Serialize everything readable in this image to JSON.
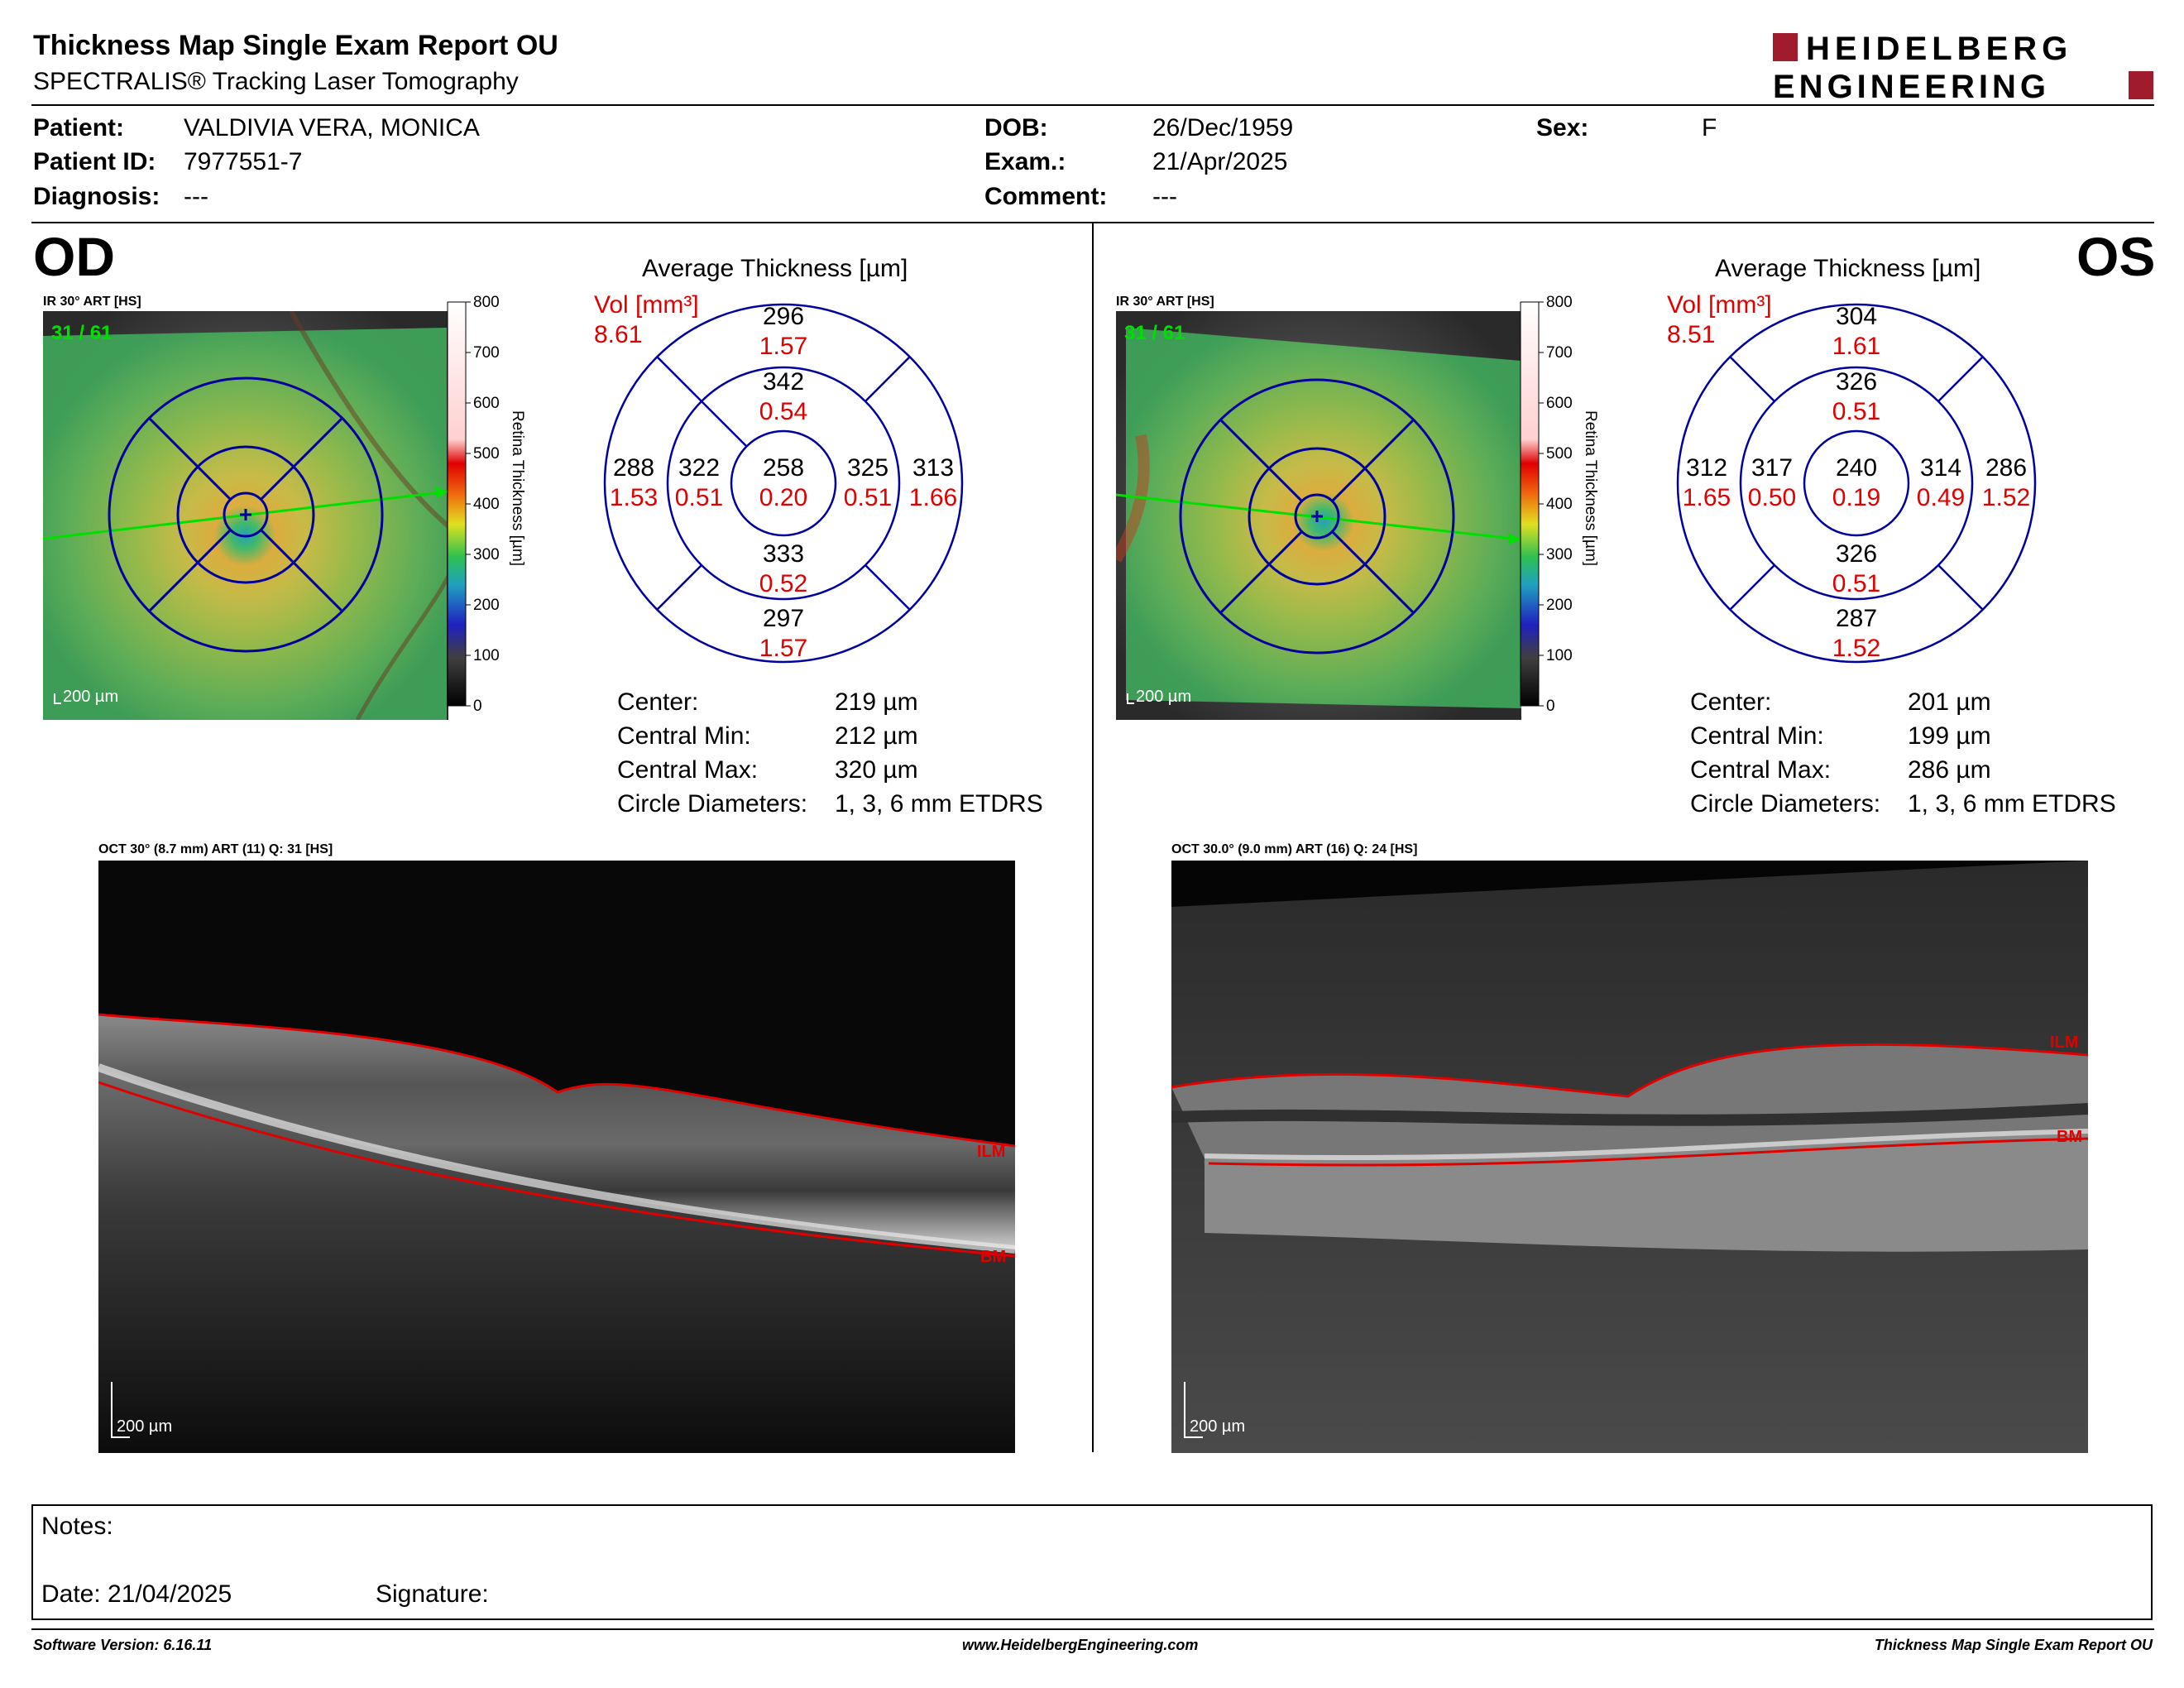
{
  "header": {
    "title": "Thickness Map Single Exam Report OU",
    "subtitle": "SPECTRALIS® Tracking Laser Tomography",
    "logo_line1": "HEIDELBERG",
    "logo_line2": "ENGINEERING"
  },
  "patient": {
    "patient_label": "Patient:",
    "patient_value": "VALDIVIA VERA, MONICA",
    "id_label": "Patient ID:",
    "id_value": "7977551-7",
    "diagnosis_label": "Diagnosis:",
    "diagnosis_value": "---",
    "dob_label": "DOB:",
    "dob_value": "26/Dec/1959",
    "exam_label": "Exam.:",
    "exam_value": "21/Apr/2025",
    "comment_label": "Comment:",
    "comment_value": "---",
    "sex_label": "Sex:",
    "sex_value": "F"
  },
  "od": {
    "eye": "OD",
    "ir_label": "IR 30° ART [HS]",
    "frames": "31 / 61",
    "scale": "200 µm",
    "colorbar_ticks": [
      "800",
      "700",
      "600",
      "500",
      "400",
      "300",
      "200",
      "100",
      "0"
    ],
    "colorbar_label": "Retina Thickness [µm]",
    "avg_title": "Average Thickness [µm]",
    "vol_label": "Vol [mm³]",
    "vol_value": "8.61",
    "sectors": {
      "outer_sup": [
        "296",
        "1.57"
      ],
      "inner_sup": [
        "342",
        "0.54"
      ],
      "outer_temp": [
        "288",
        "1.53"
      ],
      "inner_temp": [
        "322",
        "0.51"
      ],
      "center": [
        "258",
        "0.20"
      ],
      "inner_nas": [
        "325",
        "0.51"
      ],
      "outer_nas": [
        "313",
        "1.66"
      ],
      "inner_inf": [
        "333",
        "0.52"
      ],
      "outer_inf": [
        "297",
        "1.57"
      ]
    },
    "stats": {
      "center_label": "Center:",
      "center_value": "219 µm",
      "min_label": "Central Min:",
      "min_value": "212 µm",
      "max_label": "Central Max:",
      "max_value": "320 µm",
      "circ_label": "Circle Diameters:",
      "circ_value": "1, 3, 6 mm ETDRS"
    },
    "oct_label": "OCT 30° (8.7 mm) ART (11) Q: 31 [HS]",
    "oct_scale": "200 µm",
    "ilm": "ILM",
    "bm": "BM"
  },
  "os": {
    "eye": "OS",
    "ir_label": "IR 30° ART [HS]",
    "frames": "31 / 61",
    "scale": "200 µm",
    "colorbar_ticks": [
      "800",
      "700",
      "600",
      "500",
      "400",
      "300",
      "200",
      "100",
      "0"
    ],
    "colorbar_label": "Retina Thickness [µm]",
    "avg_title": "Average Thickness [µm]",
    "vol_label": "Vol [mm³]",
    "vol_value": "8.51",
    "sectors": {
      "outer_sup": [
        "304",
        "1.61"
      ],
      "inner_sup": [
        "326",
        "0.51"
      ],
      "outer_temp": [
        "312",
        "1.65"
      ],
      "inner_temp": [
        "317",
        "0.50"
      ],
      "center": [
        "240",
        "0.19"
      ],
      "inner_nas": [
        "314",
        "0.49"
      ],
      "outer_nas": [
        "286",
        "1.52"
      ],
      "inner_inf": [
        "326",
        "0.51"
      ],
      "outer_inf": [
        "287",
        "1.52"
      ]
    },
    "stats": {
      "center_label": "Center:",
      "center_value": "201 µm",
      "min_label": "Central Min:",
      "min_value": "199 µm",
      "max_label": "Central Max:",
      "max_value": "286 µm",
      "circ_label": "Circle Diameters:",
      "circ_value": "1, 3, 6 mm ETDRS"
    },
    "oct_label": "OCT 30.0° (9.0 mm) ART (16) Q: 24 [HS]",
    "oct_scale": "200 µm",
    "ilm": "ILM",
    "bm": "BM"
  },
  "notes": {
    "notes_label": "Notes:",
    "date_label": "Date: 21/04/2025",
    "signature_label": "Signature:"
  },
  "footer": {
    "software": "Software Version: 6.16.11",
    "website": "www.HeidelbergEngineering.com",
    "report": "Thickness Map Single Exam Report OU"
  },
  "colors": {
    "accent_red": "#e00000",
    "grid_blue": "#0000a0",
    "logo_red": "#a01c2c"
  }
}
